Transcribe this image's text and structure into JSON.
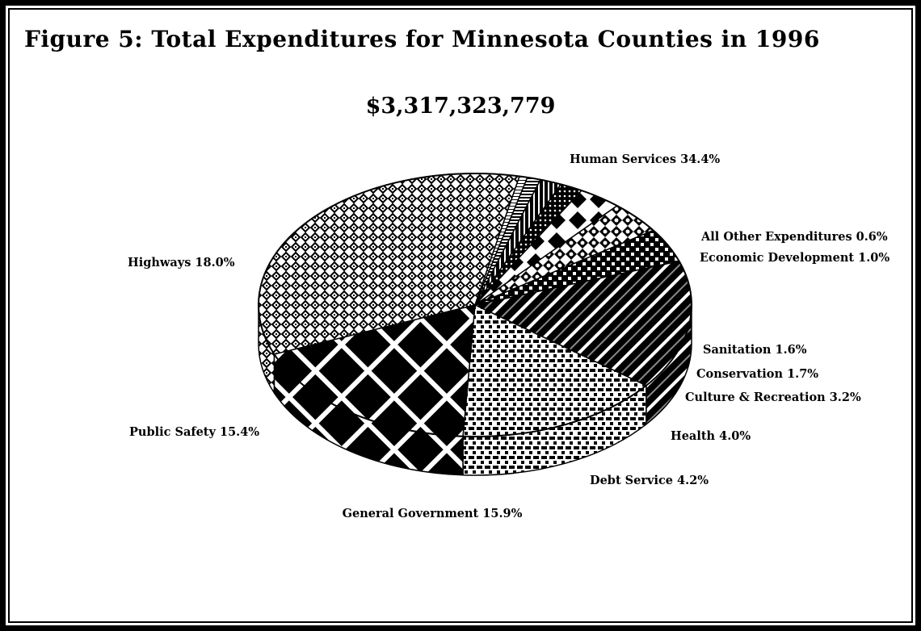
{
  "title": "Figure 5: Total Expenditures for Minnesota Counties in 1996",
  "subtitle": "$3,317,323,779",
  "chart_data": {
    "type": "pie",
    "title": "Figure 5: Total Expenditures for Minnesota Counties in 1996",
    "subtitle": "$3,317,323,779",
    "slices": [
      {
        "label": "Human Services",
        "value": 34.4,
        "text": "Human Services 34.4%"
      },
      {
        "label": "All Other Expenditures",
        "value": 0.6,
        "text": "All Other Expenditures 0.6%"
      },
      {
        "label": "Economic Development",
        "value": 1.0,
        "text": "Economic Development 1.0%"
      },
      {
        "label": "Sanitation",
        "value": 1.6,
        "text": "Sanitation 1.6%"
      },
      {
        "label": "Conservation",
        "value": 1.7,
        "text": "Conservation 1.7%"
      },
      {
        "label": "Culture & Recreation",
        "value": 3.2,
        "text": "Culture & Recreation 3.2%"
      },
      {
        "label": "Health",
        "value": 4.0,
        "text": "Health 4.0%"
      },
      {
        "label": "Debt Service",
        "value": 4.2,
        "text": "Debt Service 4.2%"
      },
      {
        "label": "General Government",
        "value": 15.9,
        "text": "General Government 15.9%"
      },
      {
        "label": "Public Safety",
        "value": 15.4,
        "text": "Public Safety 15.4%"
      },
      {
        "label": "Highways",
        "value": 18.0,
        "text": "Highways 18.0%"
      }
    ]
  }
}
